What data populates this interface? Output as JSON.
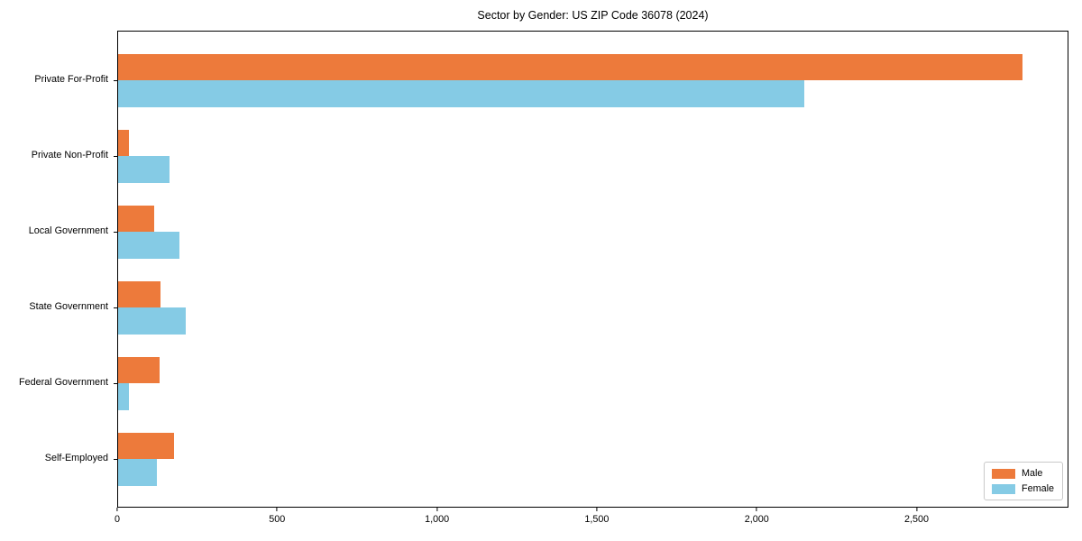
{
  "title": "Sector by Gender: US ZIP Code 36078 (2024)",
  "chart_data": {
    "type": "bar",
    "orientation": "horizontal",
    "title": "Sector by Gender: US ZIP Code 36078 (2024)",
    "categories": [
      "Private For-Profit",
      "Private Non-Profit",
      "Local Government",
      "State Government",
      "Federal Government",
      "Self-Employed"
    ],
    "series": [
      {
        "name": "Male",
        "color": "#ed7a3b",
        "values": [
          2833,
          33,
          112,
          133,
          129,
          176
        ]
      },
      {
        "name": "Female",
        "color": "#85cbe5",
        "values": [
          2150,
          160,
          191,
          211,
          33,
          121
        ]
      }
    ],
    "xlabel": "",
    "ylabel": "",
    "xlim": [
      0,
      2975
    ],
    "xticks": [
      0,
      500,
      1000,
      1500,
      2000,
      2500
    ],
    "xtick_labels": [
      "0",
      "500",
      "1,000",
      "1,500",
      "2,000",
      "2,500"
    ],
    "grid": false,
    "legend_position": "lower right",
    "background": "#ffffff",
    "spine_color": "#000000"
  }
}
